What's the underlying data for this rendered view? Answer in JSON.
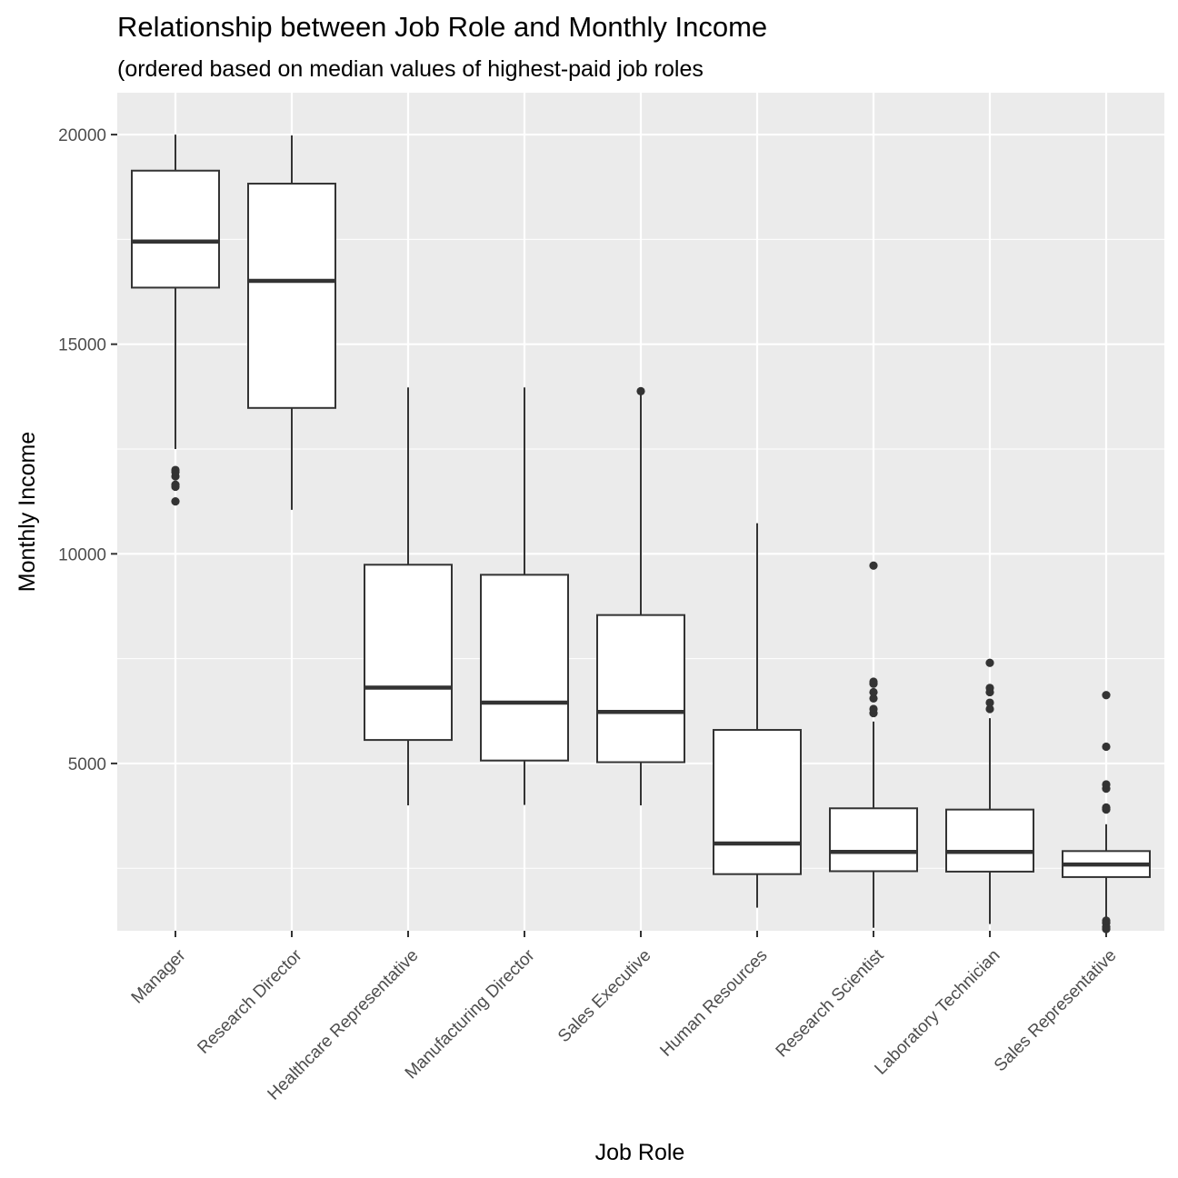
{
  "chart_data": {
    "type": "boxplot",
    "title": "Relationship between Job Role and Monthly Income",
    "subtitle": "(ordered based on median values of highest-paid job roles",
    "xlabel": "Job Role",
    "ylabel": "Monthly Income",
    "ylim": [
      1009,
      20999
    ],
    "yticks": [
      5000,
      10000,
      15000,
      20000
    ],
    "grid": true,
    "colors": {
      "panel": "#ebebeb",
      "grid": "#ffffff",
      "box_fill": "#ffffff",
      "box_stroke": "#333333"
    },
    "categories": [
      "Manager",
      "Research Director",
      "Healthcare Representative",
      "Manufacturing Director",
      "Sales Executive",
      "Human Resources",
      "Research Scientist",
      "Laboratory Technician",
      "Sales Representative"
    ],
    "boxes": [
      {
        "category": "Manager",
        "whisker_low": 12500,
        "q1": 16350,
        "median": 17450,
        "q3": 19140,
        "whisker_high": 19999,
        "outliers": [
          11250,
          11600,
          11650,
          11850,
          11950,
          12000
        ]
      },
      {
        "category": "Research Director",
        "whisker_low": 11050,
        "q1": 13480,
        "median": 16510,
        "q3": 18830,
        "whisker_high": 19980,
        "outliers": []
      },
      {
        "category": "Healthcare Representative",
        "whisker_low": 4000,
        "q1": 5560,
        "median": 6810,
        "q3": 9740,
        "whisker_high": 13970,
        "outliers": []
      },
      {
        "category": "Manufacturing Director",
        "whisker_low": 4010,
        "q1": 5070,
        "median": 6450,
        "q3": 9500,
        "whisker_high": 13970,
        "outliers": []
      },
      {
        "category": "Sales Executive",
        "whisker_low": 4000,
        "q1": 5030,
        "median": 6230,
        "q3": 8540,
        "whisker_high": 13880,
        "outliers": [
          13880
        ]
      },
      {
        "category": "Human Resources",
        "whisker_low": 1560,
        "q1": 2360,
        "median": 3090,
        "q3": 5800,
        "whisker_high": 10730,
        "outliers": []
      },
      {
        "category": "Research Scientist",
        "whisker_low": 1080,
        "q1": 2430,
        "median": 2890,
        "q3": 3930,
        "whisker_high": 6000,
        "outliers": [
          6200,
          6300,
          6550,
          6700,
          6900,
          6950,
          9720
        ]
      },
      {
        "category": "Laboratory Technician",
        "whisker_low": 1170,
        "q1": 2420,
        "median": 2890,
        "q3": 3900,
        "whisker_high": 6080,
        "outliers": [
          6300,
          6450,
          6700,
          6800,
          7400
        ]
      },
      {
        "category": "Sales Representative",
        "whisker_low": 1300,
        "q1": 2290,
        "median": 2590,
        "q3": 2910,
        "whisker_high": 3550,
        "outliers": [
          1050,
          1100,
          1200,
          1250,
          3900,
          3950,
          4400,
          4500,
          5400,
          6630
        ]
      }
    ]
  }
}
